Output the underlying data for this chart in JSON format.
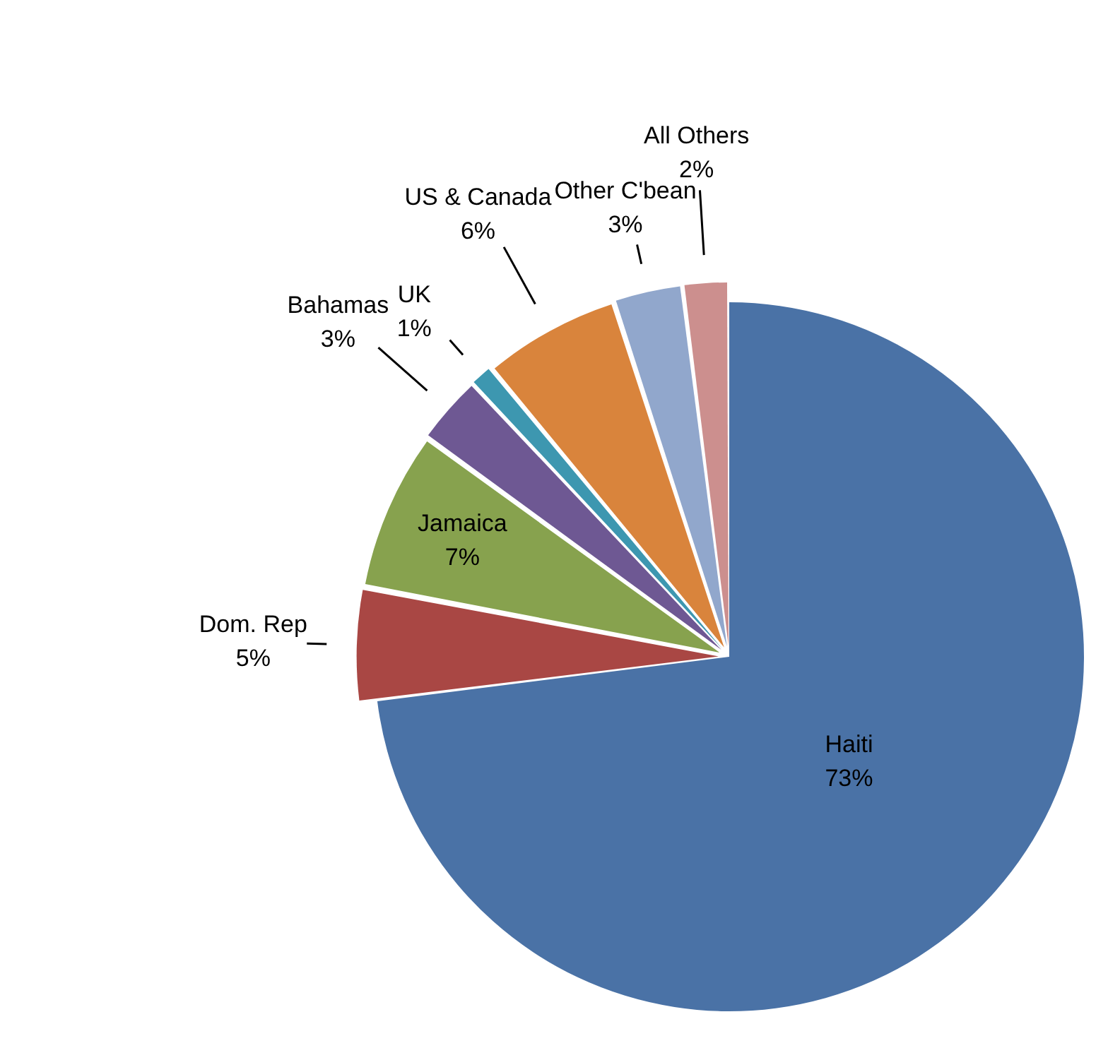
{
  "chart_data": {
    "type": "pie",
    "categories": [
      "Haiti",
      "Dom. Rep",
      "Jamaica",
      "Bahamas",
      "UK",
      "US & Canada",
      "Other C'bean",
      "All Others"
    ],
    "values": [
      73,
      5,
      7,
      3,
      1,
      6,
      3,
      2
    ],
    "value_labels": [
      "73%",
      "5%",
      "7%",
      "3%",
      "1%",
      "6%",
      "3%",
      "2%"
    ],
    "colors": [
      "#4a72a6",
      "#a94744",
      "#87a24e",
      "#6e5893",
      "#3d97b0",
      "#d9843c",
      "#91a7cc",
      "#cc8f8e"
    ],
    "legend": false
  }
}
